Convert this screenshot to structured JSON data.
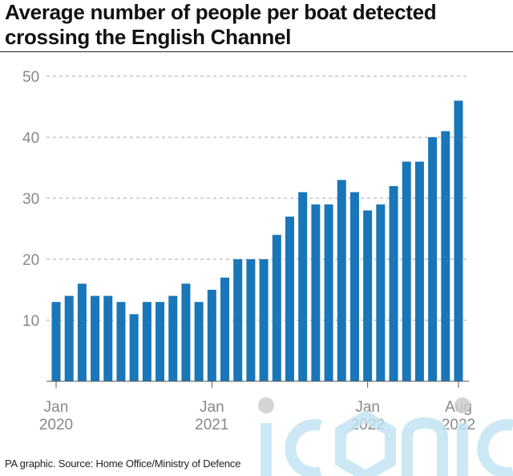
{
  "title": "Average number of people per boat detected crossing the English Channel",
  "source": "PA graphic. Source: Home Office/Ministry of Defence",
  "watermark_text": "iconic",
  "colors": {
    "bar": "#1976b8",
    "grid": "#aaaaaa",
    "axis_text": "#888888",
    "title": "#111111",
    "watermark": "#bfe3f2"
  },
  "chart_data": {
    "type": "bar",
    "title": "Average number of people per boat detected crossing the English Channel",
    "xlabel": "",
    "ylabel": "",
    "ylim": [
      0,
      50
    ],
    "yticks": [
      10,
      20,
      30,
      40,
      50
    ],
    "grid": true,
    "months": [
      "2020-01",
      "2020-02",
      "2020-03",
      "2020-04",
      "2020-05",
      "2020-06",
      "2020-07",
      "2020-08",
      "2020-09",
      "2020-10",
      "2020-11",
      "2020-12",
      "2021-01",
      "2021-02",
      "2021-03",
      "2021-04",
      "2021-05",
      "2021-06",
      "2021-07",
      "2021-08",
      "2021-09",
      "2021-10",
      "2021-11",
      "2021-12",
      "2022-01",
      "2022-02",
      "2022-03",
      "2022-04",
      "2022-05",
      "2022-06",
      "2022-07",
      "2022-08"
    ],
    "values": [
      13,
      14,
      16,
      14,
      14,
      13,
      11,
      13,
      13,
      14,
      16,
      13,
      15,
      17,
      20,
      20,
      20,
      24,
      27,
      31,
      29,
      29,
      33,
      31,
      28,
      29,
      32,
      36,
      36,
      40,
      41,
      46
    ],
    "x_tick_labels": [
      {
        "month_index": 0,
        "line1": "Jan",
        "line2": "2020"
      },
      {
        "month_index": 12,
        "line1": "Jan",
        "line2": "2021"
      },
      {
        "month_index": 24,
        "line1": "Jan",
        "line2": "2022"
      },
      {
        "month_index": 31,
        "line1": "Aug",
        "line2": "2022"
      }
    ]
  }
}
